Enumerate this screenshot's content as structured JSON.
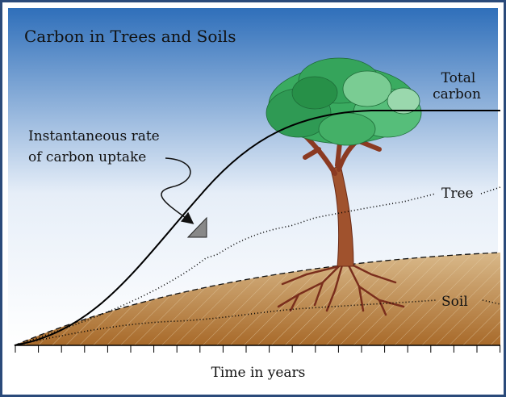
{
  "title": "Carbon in Trees and Soils",
  "labels": {
    "total_carbon": [
      "Total",
      "carbon"
    ],
    "uptake": [
      "Instantaneous rate",
      "of carbon uptake"
    ],
    "tree": "Tree",
    "soil": "Soil",
    "x_axis": "Time in years"
  }
}
